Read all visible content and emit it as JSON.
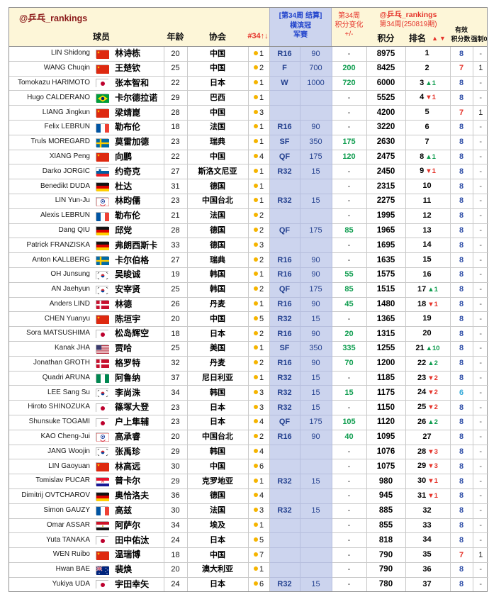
{
  "colors": {
    "header_bg": "#fdf6d8",
    "blue_col_bg": "#ccd4ee",
    "green": "#0f9d4f",
    "red": "#e5332a",
    "navy": "#24418f",
    "dark_red": "#8b1a1a",
    "blue_text": "#2244cc",
    "dot": "#f5b400",
    "valid_blue": "#2b4ba6",
    "valid_cyan": "#31a8d8"
  },
  "header": {
    "watermark": "@乒乓_rankings",
    "player": "球员",
    "age": "年龄",
    "assoc": "协会",
    "assoc_rank": "#34↑↓",
    "event_bracket": "[第34周 结算]",
    "event_name1": "横滨冠",
    "event_name2": "军赛",
    "week": "第34周",
    "change": "积分变化",
    "plusminus": "+/-",
    "right_watermark": "@乒乓_rankings",
    "edition": "第34周(250819期)",
    "points": "积分",
    "rank": "排名",
    "rank_arrows": "▲▼",
    "valid1": "有效",
    "valid2": "积分数",
    "force": "强制0"
  },
  "rows": [
    {
      "en": "LIN Shidong",
      "cn": "林诗栋",
      "age": 20,
      "flag": "chn",
      "assoc": "中国",
      "num": 1,
      "round": "R16",
      "rpts": "90",
      "chg": "-",
      "pts": "8975",
      "rank": "1",
      "delta": "",
      "dir": "",
      "valid": "8",
      "vcolor": "",
      "force": "-"
    },
    {
      "en": "WANG Chuqin",
      "cn": "王楚钦",
      "age": 25,
      "flag": "chn",
      "assoc": "中国",
      "num": 2,
      "round": "F",
      "rpts": "700",
      "chg": "200",
      "pts": "8425",
      "rank": "2",
      "delta": "",
      "dir": "",
      "valid": "7",
      "vcolor": "red",
      "force": "1"
    },
    {
      "en": "Tomokazu HARIMOTO",
      "cn": "张本智和",
      "age": 22,
      "flag": "jpn",
      "assoc": "日本",
      "num": 1,
      "round": "W",
      "rpts": "1000",
      "chg": "720",
      "pts": "6000",
      "rank": "3",
      "delta": "▲1",
      "dir": "up",
      "valid": "8",
      "vcolor": "",
      "force": "-"
    },
    {
      "en": "Hugo CALDERANO",
      "cn": "卡尔德拉诺",
      "age": 29,
      "flag": "bra",
      "assoc": "巴西",
      "num": 1,
      "round": "",
      "rpts": "",
      "chg": "-",
      "pts": "5525",
      "rank": "4",
      "delta": "▼1",
      "dir": "down",
      "valid": "8",
      "vcolor": "",
      "force": "-"
    },
    {
      "en": "LIANG Jingkun",
      "cn": "梁靖崑",
      "age": 28,
      "flag": "chn",
      "assoc": "中国",
      "num": 3,
      "round": "",
      "rpts": "",
      "chg": "-",
      "pts": "4200",
      "rank": "5",
      "delta": "",
      "dir": "",
      "valid": "7",
      "vcolor": "red",
      "force": "1"
    },
    {
      "en": "Felix LEBRUN",
      "cn": "勒布伦",
      "age": 18,
      "flag": "fra",
      "assoc": "法国",
      "num": 1,
      "round": "R16",
      "rpts": "90",
      "chg": "-",
      "pts": "3220",
      "rank": "6",
      "delta": "",
      "dir": "",
      "valid": "8",
      "vcolor": "",
      "force": "-"
    },
    {
      "en": "Truls MOREGARD",
      "cn": "莫雷加德",
      "age": 23,
      "flag": "swe",
      "assoc": "瑞典",
      "num": 1,
      "round": "SF",
      "rpts": "350",
      "chg": "175",
      "pts": "2630",
      "rank": "7",
      "delta": "",
      "dir": "",
      "valid": "8",
      "vcolor": "",
      "force": "-"
    },
    {
      "en": "XIANG Peng",
      "cn": "向鹏",
      "age": 22,
      "flag": "chn",
      "assoc": "中国",
      "num": 4,
      "round": "QF",
      "rpts": "175",
      "chg": "120",
      "pts": "2475",
      "rank": "8",
      "delta": "▲1",
      "dir": "up",
      "valid": "8",
      "vcolor": "",
      "force": "-"
    },
    {
      "en": "Darko JORGIC",
      "cn": "约奇克",
      "age": 27,
      "flag": "slo",
      "assoc": "斯洛文尼亚",
      "num": 1,
      "round": "R32",
      "rpts": "15",
      "chg": "-",
      "pts": "2450",
      "rank": "9",
      "delta": "▼1",
      "dir": "down",
      "valid": "8",
      "vcolor": "",
      "force": "-"
    },
    {
      "en": "Benedikt DUDA",
      "cn": "杜达",
      "age": 31,
      "flag": "ger",
      "assoc": "德国",
      "num": 1,
      "round": "",
      "rpts": "",
      "chg": "-",
      "pts": "2315",
      "rank": "10",
      "delta": "",
      "dir": "",
      "valid": "8",
      "vcolor": "",
      "force": "-"
    },
    {
      "en": "LIN Yun-Ju",
      "cn": "林昀儒",
      "age": 23,
      "flag": "tpe",
      "assoc": "中国台北",
      "num": 1,
      "round": "R32",
      "rpts": "15",
      "chg": "-",
      "pts": "2275",
      "rank": "11",
      "delta": "",
      "dir": "",
      "valid": "8",
      "vcolor": "",
      "force": "-"
    },
    {
      "en": "Alexis LEBRUN",
      "cn": "勒布伦",
      "age": 21,
      "flag": "fra",
      "assoc": "法国",
      "num": 2,
      "round": "",
      "rpts": "",
      "chg": "-",
      "pts": "1995",
      "rank": "12",
      "delta": "",
      "dir": "",
      "valid": "8",
      "vcolor": "",
      "force": "-"
    },
    {
      "en": "Dang QIU",
      "cn": "邱党",
      "age": 28,
      "flag": "ger",
      "assoc": "德国",
      "num": 2,
      "round": "QF",
      "rpts": "175",
      "chg": "85",
      "pts": "1965",
      "rank": "13",
      "delta": "",
      "dir": "",
      "valid": "8",
      "vcolor": "",
      "force": "-"
    },
    {
      "en": "Patrick FRANZISKA",
      "cn": "弗朗西斯卡",
      "age": 33,
      "flag": "ger",
      "assoc": "德国",
      "num": 3,
      "round": "",
      "rpts": "",
      "chg": "-",
      "pts": "1695",
      "rank": "14",
      "delta": "",
      "dir": "",
      "valid": "8",
      "vcolor": "",
      "force": "-"
    },
    {
      "en": "Anton KALLBERG",
      "cn": "卡尔伯格",
      "age": 27,
      "flag": "swe",
      "assoc": "瑞典",
      "num": 2,
      "round": "R16",
      "rpts": "90",
      "chg": "-",
      "pts": "1635",
      "rank": "15",
      "delta": "",
      "dir": "",
      "valid": "8",
      "vcolor": "",
      "force": "-"
    },
    {
      "en": "OH Junsung",
      "cn": "吴晙诚",
      "age": 19,
      "flag": "kor",
      "assoc": "韩国",
      "num": 1,
      "round": "R16",
      "rpts": "90",
      "chg": "55",
      "pts": "1575",
      "rank": "16",
      "delta": "",
      "dir": "",
      "valid": "8",
      "vcolor": "",
      "force": "-"
    },
    {
      "en": "AN Jaehyun",
      "cn": "安宰贤",
      "age": 25,
      "flag": "kor",
      "assoc": "韩国",
      "num": 2,
      "round": "QF",
      "rpts": "175",
      "chg": "85",
      "pts": "1515",
      "rank": "17",
      "delta": "▲1",
      "dir": "up",
      "valid": "8",
      "vcolor": "",
      "force": "-"
    },
    {
      "en": "Anders LIND",
      "cn": "林德",
      "age": 26,
      "flag": "den",
      "assoc": "丹麦",
      "num": 1,
      "round": "R16",
      "rpts": "90",
      "chg": "45",
      "pts": "1480",
      "rank": "18",
      "delta": "▼1",
      "dir": "down",
      "valid": "8",
      "vcolor": "",
      "force": "-"
    },
    {
      "en": "CHEN Yuanyu",
      "cn": "陈垣宇",
      "age": 20,
      "flag": "chn",
      "assoc": "中国",
      "num": 5,
      "round": "R32",
      "rpts": "15",
      "chg": "-",
      "pts": "1365",
      "rank": "19",
      "delta": "",
      "dir": "",
      "valid": "8",
      "vcolor": "",
      "force": "-"
    },
    {
      "en": "Sora MATSUSHIMA",
      "cn": "松岛辉空",
      "age": 18,
      "flag": "jpn",
      "assoc": "日本",
      "num": 2,
      "round": "R16",
      "rpts": "90",
      "chg": "20",
      "pts": "1315",
      "rank": "20",
      "delta": "",
      "dir": "",
      "valid": "8",
      "vcolor": "",
      "force": "-"
    },
    {
      "en": "Kanak JHA",
      "cn": "贾哈",
      "age": 25,
      "flag": "usa",
      "assoc": "美国",
      "num": 1,
      "round": "SF",
      "rpts": "350",
      "chg": "335",
      "pts": "1255",
      "rank": "21",
      "delta": "▲10",
      "dir": "up",
      "valid": "8",
      "vcolor": "",
      "force": "-"
    },
    {
      "en": "Jonathan GROTH",
      "cn": "格罗特",
      "age": 32,
      "flag": "den",
      "assoc": "丹麦",
      "num": 2,
      "round": "R16",
      "rpts": "90",
      "chg": "70",
      "pts": "1200",
      "rank": "22",
      "delta": "▲2",
      "dir": "up",
      "valid": "8",
      "vcolor": "",
      "force": "-"
    },
    {
      "en": "Quadri ARUNA",
      "cn": "阿鲁纳",
      "age": 37,
      "flag": "ngr",
      "assoc": "尼日利亚",
      "num": 1,
      "round": "R32",
      "rpts": "15",
      "chg": "-",
      "pts": "1185",
      "rank": "23",
      "delta": "▼2",
      "dir": "down",
      "valid": "8",
      "vcolor": "",
      "force": "-"
    },
    {
      "en": "LEE Sang Su",
      "cn": "李尚洙",
      "age": 34,
      "flag": "kor",
      "assoc": "韩国",
      "num": 3,
      "round": "R32",
      "rpts": "15",
      "chg": "15",
      "pts": "1175",
      "rank": "24",
      "delta": "▼2",
      "dir": "down",
      "valid": "6",
      "vcolor": "blue",
      "force": "-"
    },
    {
      "en": "Hiroto SHINOZUKA",
      "cn": "篠塚大登",
      "age": 23,
      "flag": "jpn",
      "assoc": "日本",
      "num": 3,
      "round": "R32",
      "rpts": "15",
      "chg": "-",
      "pts": "1150",
      "rank": "25",
      "delta": "▼2",
      "dir": "down",
      "valid": "8",
      "vcolor": "",
      "force": "-"
    },
    {
      "en": "Shunsuke TOGAMI",
      "cn": "户上隼辅",
      "age": 23,
      "flag": "jpn",
      "assoc": "日本",
      "num": 4,
      "round": "QF",
      "rpts": "175",
      "chg": "105",
      "pts": "1120",
      "rank": "26",
      "delta": "▲2",
      "dir": "up",
      "valid": "8",
      "vcolor": "",
      "force": "-"
    },
    {
      "en": "KAO Cheng-Jui",
      "cn": "高承睿",
      "age": 20,
      "flag": "tpe",
      "assoc": "中国台北",
      "num": 2,
      "round": "R16",
      "rpts": "90",
      "chg": "40",
      "pts": "1095",
      "rank": "27",
      "delta": "",
      "dir": "",
      "valid": "8",
      "vcolor": "",
      "force": "-"
    },
    {
      "en": "JANG Woojin",
      "cn": "张禹珍",
      "age": 29,
      "flag": "kor",
      "assoc": "韩国",
      "num": 4,
      "round": "",
      "rpts": "",
      "chg": "-",
      "pts": "1076",
      "rank": "28",
      "delta": "▼3",
      "dir": "down",
      "valid": "8",
      "vcolor": "",
      "force": "-"
    },
    {
      "en": "LIN Gaoyuan",
      "cn": "林高远",
      "age": 30,
      "flag": "chn",
      "assoc": "中国",
      "num": 6,
      "round": "",
      "rpts": "",
      "chg": "-",
      "pts": "1075",
      "rank": "29",
      "delta": "▼3",
      "dir": "down",
      "valid": "8",
      "vcolor": "",
      "force": "-"
    },
    {
      "en": "Tomislav PUCAR",
      "cn": "普卡尔",
      "age": 29,
      "flag": "cro",
      "assoc": "克罗地亚",
      "num": 1,
      "round": "R32",
      "rpts": "15",
      "chg": "-",
      "pts": "980",
      "rank": "30",
      "delta": "▼1",
      "dir": "down",
      "valid": "8",
      "vcolor": "",
      "force": "-"
    },
    {
      "en": "Dimitrij OVTCHAROV",
      "cn": "奥恰洛夫",
      "age": 36,
      "flag": "ger",
      "assoc": "德国",
      "num": 4,
      "round": "",
      "rpts": "",
      "chg": "-",
      "pts": "945",
      "rank": "31",
      "delta": "▼1",
      "dir": "down",
      "valid": "8",
      "vcolor": "",
      "force": "-"
    },
    {
      "en": "Simon GAUZY",
      "cn": "高兹",
      "age": 30,
      "flag": "fra",
      "assoc": "法国",
      "num": 3,
      "round": "R32",
      "rpts": "15",
      "chg": "-",
      "pts": "885",
      "rank": "32",
      "delta": "",
      "dir": "",
      "valid": "8",
      "vcolor": "",
      "force": "-"
    },
    {
      "en": "Omar ASSAR",
      "cn": "阿萨尔",
      "age": 34,
      "flag": "egy",
      "assoc": "埃及",
      "num": 1,
      "round": "",
      "rpts": "",
      "chg": "-",
      "pts": "855",
      "rank": "33",
      "delta": "",
      "dir": "",
      "valid": "8",
      "vcolor": "",
      "force": "-"
    },
    {
      "en": "Yuta TANAKA",
      "cn": "田中佑汰",
      "age": 24,
      "flag": "jpn",
      "assoc": "日本",
      "num": 5,
      "round": "",
      "rpts": "",
      "chg": "-",
      "pts": "818",
      "rank": "34",
      "delta": "",
      "dir": "",
      "valid": "8",
      "vcolor": "",
      "force": "-"
    },
    {
      "en": "WEN Ruibo",
      "cn": "温瑞博",
      "age": 18,
      "flag": "chn",
      "assoc": "中国",
      "num": 7,
      "round": "",
      "rpts": "",
      "chg": "-",
      "pts": "790",
      "rank": "35",
      "delta": "",
      "dir": "",
      "valid": "7",
      "vcolor": "red",
      "force": "1"
    },
    {
      "en": "Hwan BAE",
      "cn": "裴焕",
      "age": 20,
      "flag": "aus",
      "assoc": "澳大利亚",
      "num": 1,
      "round": "",
      "rpts": "",
      "chg": "-",
      "pts": "790",
      "rank": "36",
      "delta": "",
      "dir": "",
      "valid": "8",
      "vcolor": "",
      "force": "-"
    },
    {
      "en": "Yukiya UDA",
      "cn": "宇田幸矢",
      "age": 24,
      "flag": "jpn",
      "assoc": "日本",
      "num": 6,
      "round": "R32",
      "rpts": "15",
      "chg": "-",
      "pts": "780",
      "rank": "37",
      "delta": "",
      "dir": "",
      "valid": "8",
      "vcolor": "",
      "force": "-"
    }
  ]
}
